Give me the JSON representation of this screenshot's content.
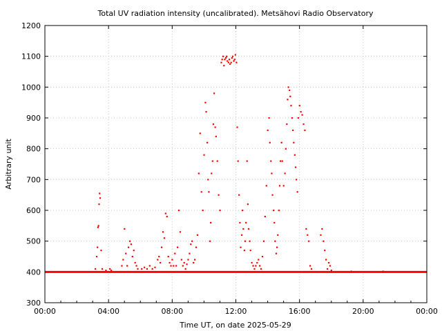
{
  "chart_data": {
    "type": "scatter",
    "title": "Total UV radiation intensity (uncalibrated). Metsähovi Radio Observatory",
    "xlabel": "Time UT, on date 2025-05-29",
    "ylabel": "Arbitrary unit",
    "xlim": [
      "00:00",
      "24:00"
    ],
    "ylim": [
      300,
      1200
    ],
    "x_ticks": [
      "00:00",
      "04:00",
      "08:00",
      "12:00",
      "16:00",
      "20:00",
      "00:00"
    ],
    "y_ticks": [
      300,
      400,
      500,
      600,
      700,
      800,
      900,
      1000,
      1100,
      1200
    ],
    "grid": true,
    "marker_color": "#ff0000",
    "baseline_value": 400,
    "points": [
      [
        "03:10",
        410
      ],
      [
        "03:15",
        450
      ],
      [
        "03:18",
        480
      ],
      [
        "03:20",
        545
      ],
      [
        "03:22",
        550
      ],
      [
        "03:24",
        620
      ],
      [
        "03:26",
        655
      ],
      [
        "03:28",
        640
      ],
      [
        "03:32",
        470
      ],
      [
        "03:36",
        410
      ],
      [
        "03:50",
        405
      ],
      [
        "04:05",
        410
      ],
      [
        "04:10",
        405
      ],
      [
        "04:50",
        420
      ],
      [
        "04:55",
        440
      ],
      [
        "05:00",
        540
      ],
      [
        "05:05",
        460
      ],
      [
        "05:10",
        420
      ],
      [
        "05:15",
        480
      ],
      [
        "05:20",
        500
      ],
      [
        "05:25",
        490
      ],
      [
        "05:30",
        450
      ],
      [
        "05:35",
        470
      ],
      [
        "05:40",
        430
      ],
      [
        "05:45",
        420
      ],
      [
        "05:50",
        410
      ],
      [
        "06:05",
        410
      ],
      [
        "06:15",
        415
      ],
      [
        "06:25",
        410
      ],
      [
        "06:35",
        420
      ],
      [
        "06:45",
        410
      ],
      [
        "06:55",
        415
      ],
      [
        "07:05",
        440
      ],
      [
        "07:10",
        450
      ],
      [
        "07:15",
        430
      ],
      [
        "07:20",
        480
      ],
      [
        "07:25",
        530
      ],
      [
        "07:30",
        510
      ],
      [
        "07:35",
        590
      ],
      [
        "07:40",
        580
      ],
      [
        "07:45",
        450
      ],
      [
        "07:50",
        430
      ],
      [
        "07:55",
        420
      ],
      [
        "08:00",
        440
      ],
      [
        "08:05",
        420
      ],
      [
        "08:10",
        460
      ],
      [
        "08:15",
        420
      ],
      [
        "08:20",
        480
      ],
      [
        "08:25",
        600
      ],
      [
        "08:30",
        530
      ],
      [
        "08:35",
        440
      ],
      [
        "08:40",
        420
      ],
      [
        "08:45",
        430
      ],
      [
        "08:50",
        410
      ],
      [
        "08:55",
        425
      ],
      [
        "09:00",
        440
      ],
      [
        "09:05",
        460
      ],
      [
        "09:10",
        490
      ],
      [
        "09:15",
        500
      ],
      [
        "09:20",
        430
      ],
      [
        "09:25",
        440
      ],
      [
        "09:30",
        480
      ],
      [
        "09:35",
        520
      ],
      [
        "09:40",
        720
      ],
      [
        "09:45",
        850
      ],
      [
        "09:50",
        660
      ],
      [
        "09:55",
        600
      ],
      [
        "10:00",
        780
      ],
      [
        "10:05",
        950
      ],
      [
        "10:08",
        920
      ],
      [
        "10:12",
        820
      ],
      [
        "10:15",
        700
      ],
      [
        "10:18",
        660
      ],
      [
        "10:22",
        500
      ],
      [
        "10:25",
        560
      ],
      [
        "10:28",
        720
      ],
      [
        "10:32",
        760
      ],
      [
        "10:35",
        880
      ],
      [
        "10:38",
        980
      ],
      [
        "10:42",
        870
      ],
      [
        "10:45",
        840
      ],
      [
        "10:50",
        760
      ],
      [
        "10:55",
        650
      ],
      [
        "11:00",
        600
      ],
      [
        "11:05",
        1080
      ],
      [
        "11:08",
        1090
      ],
      [
        "11:12",
        1100
      ],
      [
        "11:15",
        1070
      ],
      [
        "11:18",
        1090
      ],
      [
        "11:22",
        1095
      ],
      [
        "11:25",
        1100
      ],
      [
        "11:28",
        1085
      ],
      [
        "11:32",
        1080
      ],
      [
        "11:35",
        1090
      ],
      [
        "11:38",
        1075
      ],
      [
        "11:42",
        1080
      ],
      [
        "11:45",
        1095
      ],
      [
        "11:48",
        1100
      ],
      [
        "11:52",
        1085
      ],
      [
        "11:55",
        1090
      ],
      [
        "11:58",
        1105
      ],
      [
        "12:02",
        1080
      ],
      [
        "12:05",
        870
      ],
      [
        "12:08",
        760
      ],
      [
        "12:12",
        650
      ],
      [
        "12:15",
        560
      ],
      [
        "12:18",
        480
      ],
      [
        "12:22",
        520
      ],
      [
        "12:25",
        600
      ],
      [
        "12:28",
        540
      ],
      [
        "12:32",
        470
      ],
      [
        "12:35",
        500
      ],
      [
        "12:38",
        560
      ],
      [
        "12:42",
        760
      ],
      [
        "12:45",
        620
      ],
      [
        "12:48",
        540
      ],
      [
        "12:52",
        500
      ],
      [
        "12:55",
        470
      ],
      [
        "13:00",
        430
      ],
      [
        "13:05",
        420
      ],
      [
        "13:10",
        410
      ],
      [
        "13:15",
        420
      ],
      [
        "13:20",
        430
      ],
      [
        "13:25",
        440
      ],
      [
        "13:30",
        420
      ],
      [
        "13:35",
        410
      ],
      [
        "13:40",
        450
      ],
      [
        "13:45",
        500
      ],
      [
        "13:50",
        580
      ],
      [
        "13:55",
        680
      ],
      [
        "14:00",
        860
      ],
      [
        "14:05",
        900
      ],
      [
        "14:08",
        820
      ],
      [
        "14:12",
        760
      ],
      [
        "14:15",
        720
      ],
      [
        "14:18",
        650
      ],
      [
        "14:22",
        600
      ],
      [
        "14:25",
        560
      ],
      [
        "14:28",
        500
      ],
      [
        "14:32",
        460
      ],
      [
        "14:35",
        480
      ],
      [
        "14:38",
        520
      ],
      [
        "14:42",
        600
      ],
      [
        "14:45",
        680
      ],
      [
        "14:48",
        760
      ],
      [
        "14:52",
        820
      ],
      [
        "14:55",
        760
      ],
      [
        "15:00",
        680
      ],
      [
        "15:05",
        720
      ],
      [
        "15:08",
        800
      ],
      [
        "15:12",
        880
      ],
      [
        "15:15",
        960
      ],
      [
        "15:18",
        1000
      ],
      [
        "15:22",
        990
      ],
      [
        "15:25",
        970
      ],
      [
        "15:28",
        940
      ],
      [
        "15:32",
        900
      ],
      [
        "15:35",
        860
      ],
      [
        "15:38",
        820
      ],
      [
        "15:42",
        780
      ],
      [
        "15:45",
        740
      ],
      [
        "15:48",
        700
      ],
      [
        "15:52",
        660
      ],
      [
        "15:55",
        900
      ],
      [
        "16:00",
        940
      ],
      [
        "16:05",
        920
      ],
      [
        "16:10",
        910
      ],
      [
        "16:15",
        880
      ],
      [
        "16:20",
        860
      ],
      [
        "16:25",
        540
      ],
      [
        "16:30",
        520
      ],
      [
        "16:35",
        500
      ],
      [
        "16:40",
        420
      ],
      [
        "16:45",
        410
      ],
      [
        "17:20",
        520
      ],
      [
        "17:25",
        540
      ],
      [
        "17:30",
        500
      ],
      [
        "17:35",
        470
      ],
      [
        "17:40",
        440
      ],
      [
        "17:45",
        410
      ],
      [
        "17:50",
        430
      ],
      [
        "17:55",
        420
      ],
      [
        "18:00",
        405
      ],
      [
        "19:15",
        402
      ],
      [
        "21:15",
        402
      ]
    ]
  }
}
